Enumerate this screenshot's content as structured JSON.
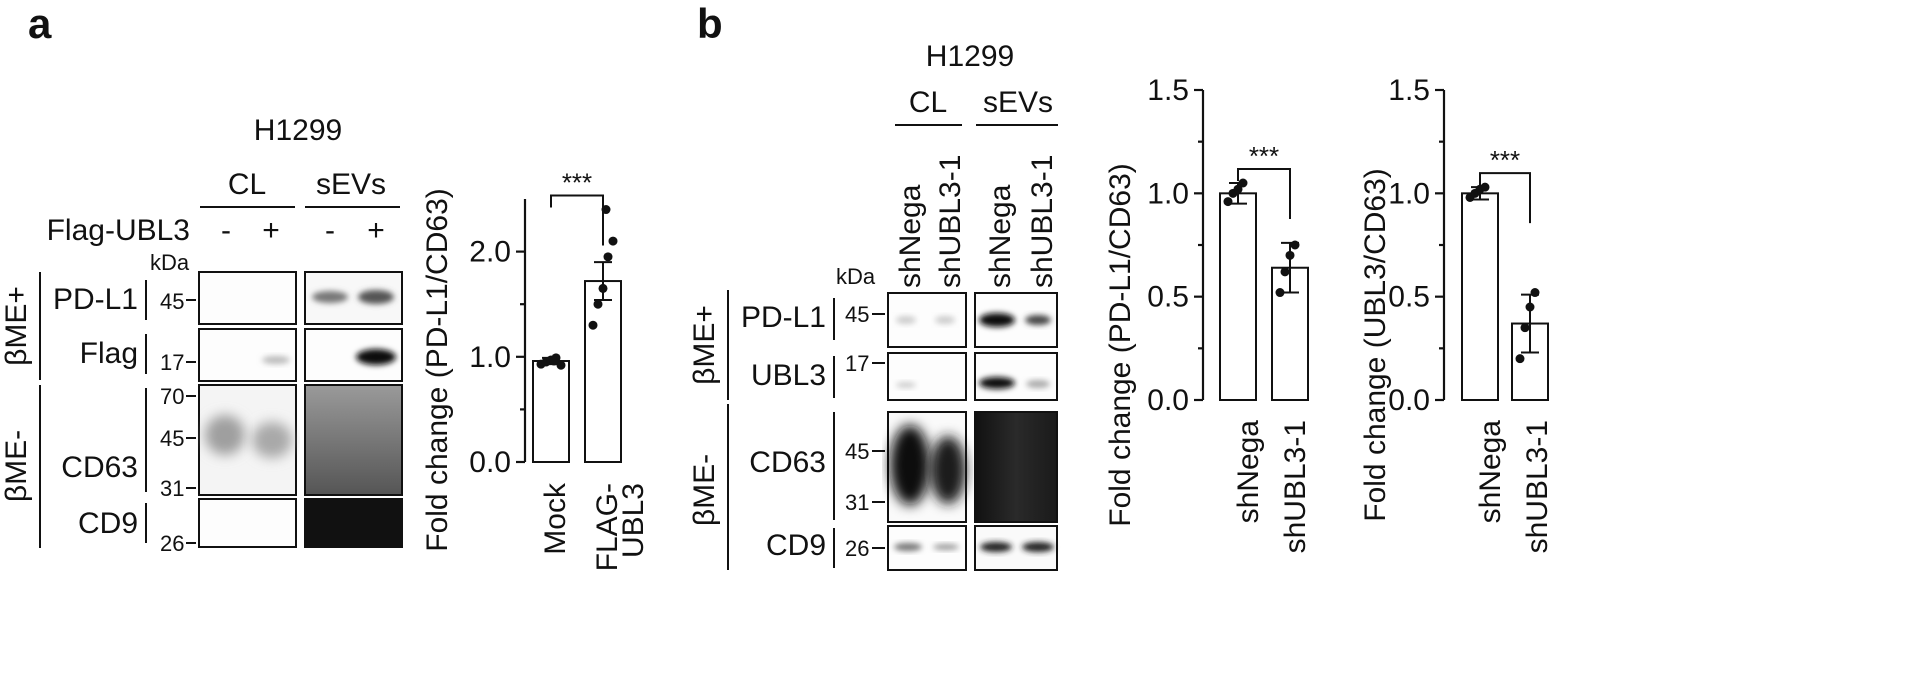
{
  "panel_a": {
    "label": "a",
    "cell_line": "H1299",
    "group_cl": "CL",
    "group_sevs": "sEVs",
    "flag_row_label": "Flag-UBL3",
    "flag_signs": [
      "-",
      "+",
      "-",
      "+"
    ],
    "kda": "kDa",
    "bme_plus": "βME+",
    "bme_minus": "βME-",
    "blot_rows": [
      {
        "label": "PD-L1",
        "markers": [
          "45"
        ]
      },
      {
        "label": "Flag",
        "markers": [
          "17"
        ]
      },
      {
        "label": "CD63",
        "markers": [
          "70",
          "45",
          "31"
        ]
      },
      {
        "label": "CD9",
        "markers": [
          "26"
        ]
      }
    ]
  },
  "panel_b": {
    "label": "b",
    "cell_line": "H1299",
    "group_cl": "CL",
    "group_sevs": "sEVs",
    "lane_labels": [
      "shNega",
      "shUBL3-1",
      "shNega",
      "shUBL3-1"
    ],
    "kda": "kDa",
    "bme_plus": "βME+",
    "bme_minus": "βME-",
    "blot_rows": [
      {
        "label": "PD-L1",
        "markers": [
          "45"
        ]
      },
      {
        "label": "UBL3",
        "markers": [
          "17"
        ]
      },
      {
        "label": "CD63",
        "markers": [
          "45",
          "31"
        ]
      },
      {
        "label": "CD9",
        "markers": [
          "26"
        ]
      }
    ]
  },
  "chart_data": [
    {
      "type": "bar",
      "ylabel": "Fold change (PD-L1/CD63)",
      "categories": [
        "Mock",
        "FLAG-UBL3"
      ],
      "values": [
        0.96,
        1.72
      ],
      "errors": [
        0.03,
        0.18
      ],
      "points": [
        [
          0.93,
          0.95,
          0.97,
          0.99,
          0.92,
          0.96
        ],
        [
          1.3,
          1.5,
          1.65,
          1.95,
          2.1,
          2.4
        ]
      ],
      "significance": "***",
      "ylim": [
        0.0,
        2.5
      ],
      "yticks": [
        "0.0",
        "1.0",
        "2.0"
      ]
    },
    {
      "type": "bar",
      "ylabel": "Fold change (PD-L1/CD63)",
      "categories": [
        "shNega",
        "shUBL3-1"
      ],
      "values": [
        1.0,
        0.64
      ],
      "errors": [
        0.05,
        0.12
      ],
      "points": [
        [
          0.96,
          1.0,
          1.02,
          1.05
        ],
        [
          0.52,
          0.62,
          0.7,
          0.75
        ]
      ],
      "significance": "***",
      "ylim": [
        0.0,
        1.5
      ],
      "yticks": [
        "0.0",
        "0.5",
        "1.0",
        "1.5"
      ]
    },
    {
      "type": "bar",
      "ylabel": "Fold change (UBL3/CD63)",
      "categories": [
        "shNega",
        "shUBL3-1"
      ],
      "values": [
        1.0,
        0.37
      ],
      "errors": [
        0.03,
        0.14
      ],
      "points": [
        [
          0.98,
          1.0,
          1.02,
          1.03
        ],
        [
          0.2,
          0.35,
          0.45,
          0.52
        ]
      ],
      "significance": "***",
      "ylim": [
        0.0,
        1.5
      ],
      "yticks": [
        "0.0",
        "0.5",
        "1.0",
        "1.5"
      ]
    }
  ]
}
